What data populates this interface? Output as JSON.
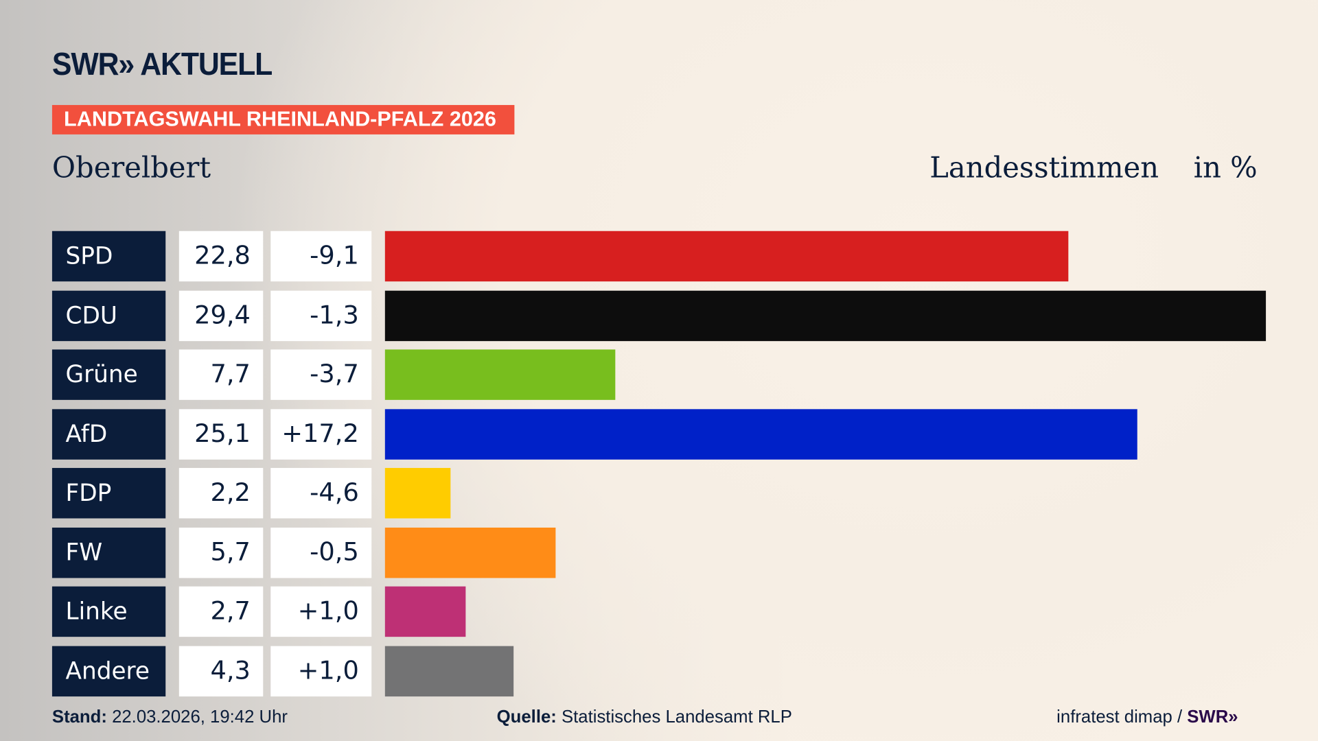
{
  "brand": {
    "logo": "SWR» AKTUELL"
  },
  "tag": "LANDTAGSWAHL RHEINLAND-PFALZ 2026",
  "place": "Oberelbert",
  "header": {
    "measure": "Landesstimmen",
    "unit": "in %"
  },
  "chart_data": {
    "type": "bar",
    "orientation": "horizontal",
    "categories": [
      "SPD",
      "CDU",
      "Grüne",
      "AfD",
      "FDP",
      "FW",
      "Linke",
      "Andere"
    ],
    "values": [
      22.8,
      29.4,
      7.7,
      25.1,
      2.2,
      5.7,
      2.7,
      4.3
    ],
    "value_labels": [
      "22,8",
      "29,4",
      "7,7",
      "25,1",
      "2,2",
      "5,7",
      "2,7",
      "4,3"
    ],
    "diffs": [
      -9.1,
      -1.3,
      -3.7,
      17.2,
      -4.6,
      -0.5,
      1.0,
      1.0
    ],
    "diff_labels": [
      "-9,1",
      "-1,3",
      "-3,7",
      "+17,2",
      "-4,6",
      "-0,5",
      "+1,0",
      "+1,0"
    ],
    "colors": [
      "#d71f1f",
      "#0d0d0d",
      "#78be1e",
      "#0021c8",
      "#ffcc00",
      "#ff8c17",
      "#be3075",
      "#737374"
    ],
    "grid": false
  },
  "footer": {
    "stand_label": "Stand:",
    "stand_value": "22.03.2026, 19:42 Uhr",
    "source_label": "Quelle:",
    "source_value": "Statistisches Landesamt RLP",
    "credit": "infratest dimap /",
    "credit_logo": "SWR»"
  }
}
